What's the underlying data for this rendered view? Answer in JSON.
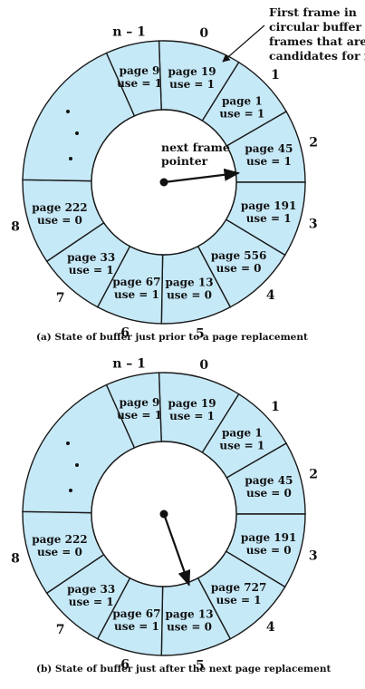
{
  "diagrams": [
    {
      "caption": "(a) State of buffer just prior to a page replacement",
      "annotation_lines": [
        "First frame in",
        "circular buffer of",
        "frames that are",
        "candidates for repl"
      ],
      "pointer_label_lines": [
        "next frame",
        "pointer"
      ],
      "pointer_target_slot": 2,
      "frames": [
        {
          "slot": "0",
          "page": "page 19",
          "use": "use = 1"
        },
        {
          "slot": "1",
          "page": "page 1",
          "use": "use = 1"
        },
        {
          "slot": "2",
          "page": "page 45",
          "use": "use = 1"
        },
        {
          "slot": "3",
          "page": "page 191",
          "use": "use = 1"
        },
        {
          "slot": "4",
          "page": "page 556",
          "use": "use = 0"
        },
        {
          "slot": "5",
          "page": "page 13",
          "use": "use = 0"
        },
        {
          "slot": "6",
          "page": "page 67",
          "use": "use = 1"
        },
        {
          "slot": "7",
          "page": "page 33",
          "use": "use = 1"
        },
        {
          "slot": "8",
          "page": "page 222",
          "use": "use = 0"
        },
        {
          "slot": "",
          "page": "",
          "use": ""
        },
        {
          "slot": "n – 1",
          "page": "page 9",
          "use": "use = 1"
        }
      ]
    },
    {
      "caption": "(b) State of buffer just after the next page replacement",
      "annotation_lines": [],
      "pointer_label_lines": [],
      "pointer_target_slot": 5,
      "frames": [
        {
          "slot": "0",
          "page": "page 19",
          "use": "use = 1"
        },
        {
          "slot": "1",
          "page": "page 1",
          "use": "use = 1"
        },
        {
          "slot": "2",
          "page": "page 45",
          "use": "use = 0"
        },
        {
          "slot": "3",
          "page": "page 191",
          "use": "use = 0"
        },
        {
          "slot": "4",
          "page": "page 727",
          "use": "use = 1"
        },
        {
          "slot": "5",
          "page": "page 13",
          "use": "use = 0"
        },
        {
          "slot": "6",
          "page": "page 67",
          "use": "use = 1"
        },
        {
          "slot": "7",
          "page": "page 33",
          "use": "use = 1"
        },
        {
          "slot": "8",
          "page": "page 222",
          "use": "use = 0"
        },
        {
          "slot": "",
          "page": "",
          "use": ""
        },
        {
          "slot": "n – 1",
          "page": "page 9",
          "use": "use = 1"
        }
      ]
    }
  ]
}
